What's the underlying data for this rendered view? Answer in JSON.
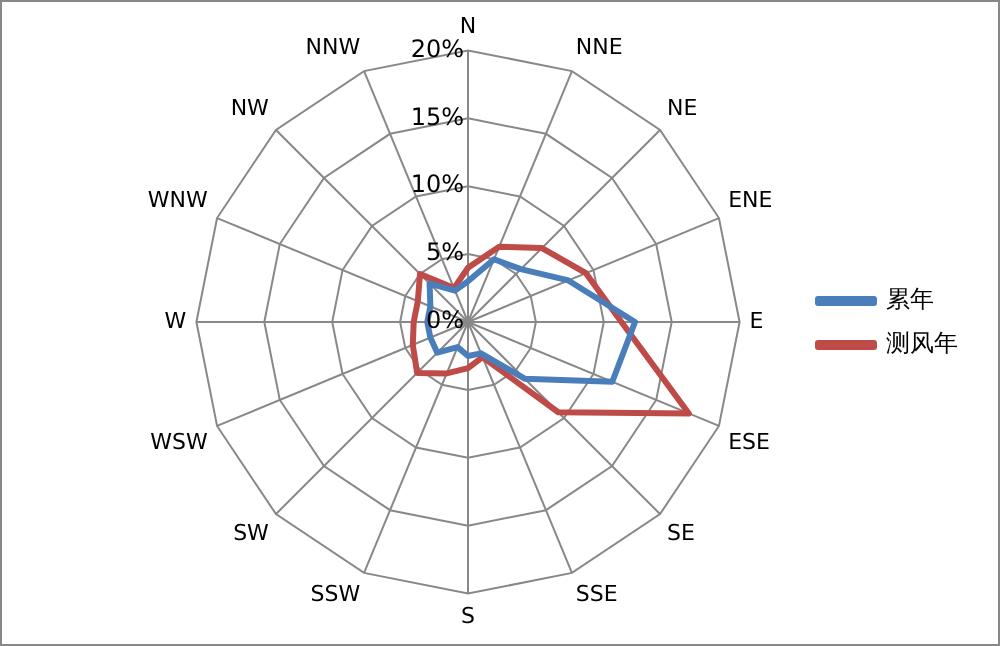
{
  "chart_data": {
    "type": "radar",
    "categories": [
      "N",
      "NNE",
      "NE",
      "ENE",
      "E",
      "ESE",
      "SE",
      "SSE",
      "S",
      "SSW",
      "SW",
      "WSW",
      "W",
      "WNW",
      "NW",
      "NNW"
    ],
    "series": [
      {
        "name": "累年",
        "color": "#4a7ebb",
        "values": [
          3,
          5,
          5.5,
          8,
          12.3,
          11.5,
          5.9,
          2.5,
          2.5,
          2,
          3.2,
          3,
          3,
          3,
          4,
          2.5
        ]
      },
      {
        "name": "测风年",
        "color": "#be4b48",
        "values": [
          4,
          6,
          7.7,
          9.4,
          11.3,
          17.6,
          9.4,
          2.8,
          3.4,
          4.1,
          5.3,
          4.4,
          4,
          4,
          5,
          2.7
        ]
      }
    ],
    "ylim": [
      0,
      20
    ],
    "yticks": [
      {
        "value": 0,
        "label": "0%"
      },
      {
        "value": 5,
        "label": "5%"
      },
      {
        "value": 10,
        "label": "10%"
      },
      {
        "value": 15,
        "label": "15%"
      },
      {
        "value": 20,
        "label": "20%"
      }
    ],
    "grid": true,
    "legend": "right",
    "marker": "none"
  }
}
